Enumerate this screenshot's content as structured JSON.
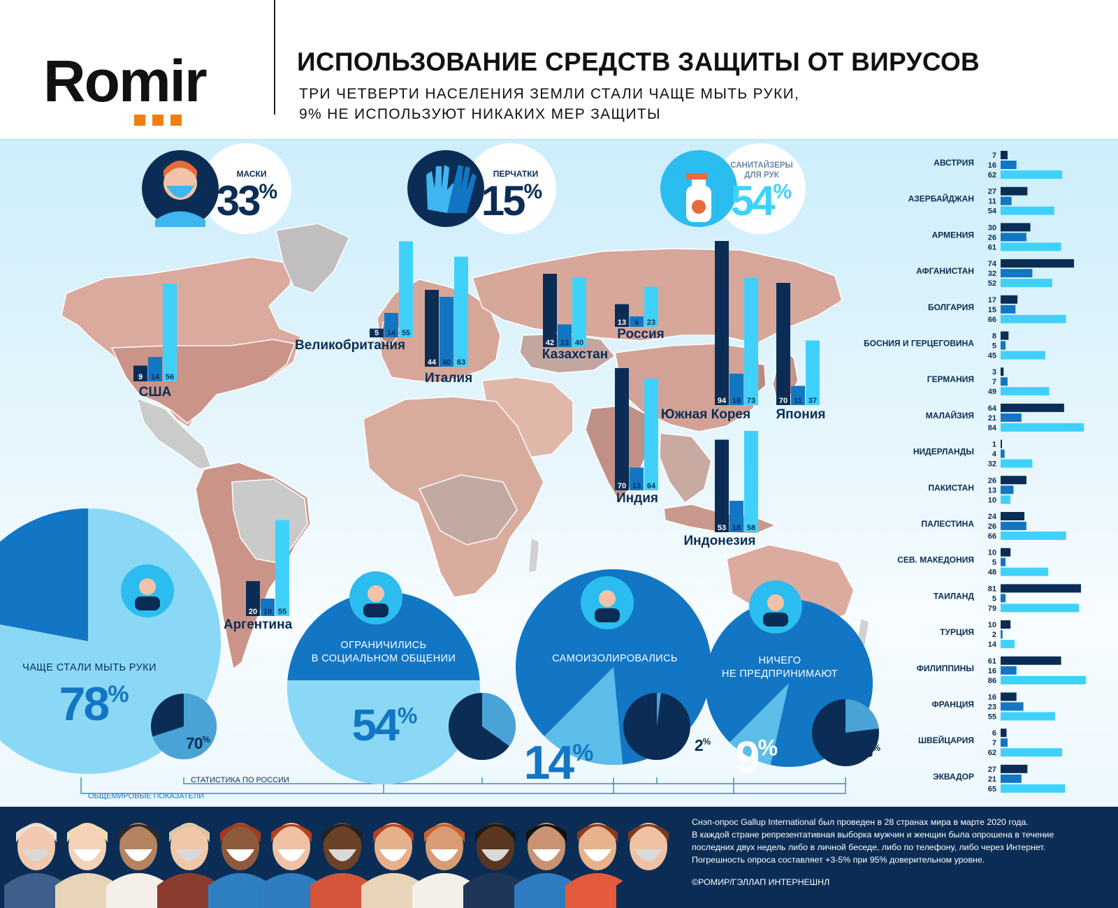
{
  "header": {
    "logo_text": "Romir",
    "title": "ИСПОЛЬЗОВАНИЕ СРЕДСТВ ЗАЩИТЫ ОТ ВИРУСОВ",
    "subtitle_line1": "ТРИ ЧЕТВЕРТИ НАСЕЛЕНИЯ ЗЕМЛИ СТАЛИ ЧАЩЕ МЫТЬ РУКИ,",
    "subtitle_line2": "9% НЕ ИСПОЛЬЗУЮТ НИКАКИХ МЕР ЗАЩИТЫ"
  },
  "colors": {
    "masks": "#0b2d55",
    "gloves": "#1276c4",
    "sanitizers": "#40d1fb",
    "accent_orange": "#f07f12",
    "background_light": "#cfeefb"
  },
  "chart_data": [
    {
      "type": "bar",
      "title": "",
      "series_names": [
        "маски",
        "перчатки",
        "санитайзеры для рук"
      ],
      "world_totals": [
        {
          "label": "маски",
          "value": 33,
          "icon": "face-mask-icon"
        },
        {
          "label": "перчатки",
          "value": 15,
          "icon": "gloves-icon"
        },
        {
          "label": "санитайзеры для рук",
          "value": 54,
          "icon": "sanitizer-spray-icon"
        }
      ],
      "map_countries": [
        {
          "name": "США",
          "values": [
            9,
            14,
            56
          ]
        },
        {
          "name": "Великобритания",
          "values": [
            5,
            14,
            55
          ]
        },
        {
          "name": "Италия",
          "values": [
            44,
            40,
            63
          ]
        },
        {
          "name": "Казахстан",
          "values": [
            42,
            13,
            40
          ]
        },
        {
          "name": "Россия",
          "values": [
            13,
            6,
            23
          ]
        },
        {
          "name": "Южная Корея",
          "values": [
            94,
            18,
            73
          ]
        },
        {
          "name": "Япония",
          "values": [
            70,
            11,
            37
          ]
        },
        {
          "name": "Индия",
          "values": [
            70,
            13,
            64
          ]
        },
        {
          "name": "Индонезия",
          "values": [
            53,
            18,
            58
          ]
        },
        {
          "name": "Аргентина",
          "values": [
            20,
            10,
            55
          ]
        }
      ]
    },
    {
      "type": "bar",
      "title": "",
      "orientation": "horizontal",
      "series_order": [
        "маски",
        "перчатки",
        "санитайзеры для рук"
      ],
      "countries": [
        {
          "name": "АВСТРИЯ",
          "values": [
            7,
            16,
            62
          ]
        },
        {
          "name": "АЗЕРБАЙДЖАН",
          "values": [
            27,
            11,
            54
          ]
        },
        {
          "name": "АРМЕНИЯ",
          "values": [
            30,
            26,
            61
          ]
        },
        {
          "name": "АФГАНИСТАН",
          "values": [
            74,
            32,
            52
          ]
        },
        {
          "name": "БОЛГАРИЯ",
          "values": [
            17,
            15,
            66
          ]
        },
        {
          "name": "БОСНИЯ И ГЕРЦЕГОВИНА",
          "values": [
            8,
            5,
            45
          ]
        },
        {
          "name": "ГЕРМАНИЯ",
          "values": [
            3,
            7,
            49
          ]
        },
        {
          "name": "МАЛАЙЗИЯ",
          "values": [
            64,
            21,
            84
          ]
        },
        {
          "name": "НИДЕРЛАНДЫ",
          "values": [
            1,
            4,
            32
          ]
        },
        {
          "name": "ПАКИСТАН",
          "values": [
            26,
            13,
            10
          ]
        },
        {
          "name": "ПАЛЕСТИНА",
          "values": [
            24,
            26,
            66
          ]
        },
        {
          "name": "СЕВ. МАКЕДОНИЯ",
          "values": [
            10,
            5,
            48
          ]
        },
        {
          "name": "ТАИЛАНД",
          "values": [
            81,
            5,
            79
          ]
        },
        {
          "name": "ТУРЦИЯ",
          "values": [
            10,
            2,
            14
          ]
        },
        {
          "name": "ФИЛИППИНЫ",
          "values": [
            61,
            16,
            86
          ]
        },
        {
          "name": "ФРАНЦИЯ",
          "values": [
            16,
            23,
            55
          ]
        },
        {
          "name": "ШВЕЙЦАРИЯ",
          "values": [
            6,
            7,
            62
          ]
        },
        {
          "name": "ЭКВАДОР",
          "values": [
            27,
            21,
            65
          ]
        }
      ]
    },
    {
      "type": "pie",
      "title": "",
      "measures": [
        {
          "label": "ЧАЩЕ СТАЛИ МЫТЬ РУКИ",
          "world": 78,
          "russia": 70,
          "icon": "hand-washing-icon"
        },
        {
          "label": "ОГРАНИЧИЛИСЬ В СОЦИАЛЬНОМ ОБЩЕНИИ",
          "world": 54,
          "russia": 35,
          "icon": "people-group-icon"
        },
        {
          "label": "САМОИЗОЛИРОВАЛИСЬ",
          "world": 14,
          "russia": 2,
          "icon": "house-person-icon"
        },
        {
          "label": "НИЧЕГО НЕ ПРЕДПРИНИМАЮТ",
          "world": 9,
          "russia": 23,
          "icon": "blindfold-person-icon"
        }
      ],
      "legend_russia": "СТАТИСТИКА ПО РОССИИ",
      "legend_world": "ОБЩЕМИРОВЫЕ ПОКАЗАТЕЛИ"
    }
  ],
  "footer": {
    "note_lines": [
      "Снэп-опрос Gallup International был проведен в 28 странах мира в марте 2020 года.",
      "В каждой стране репрезентативная выборка мужчин и женщин была опрошена в течение",
      "последних двух недель либо в личной беседе, либо по телефону, либо через Интернет.",
      "Погрешность опроса составляет +3-5% при 95% доверительном уровне."
    ],
    "copyright": "©РОМИР/ГЭЛЛАП ИНТЕРНЕШНЛ"
  }
}
